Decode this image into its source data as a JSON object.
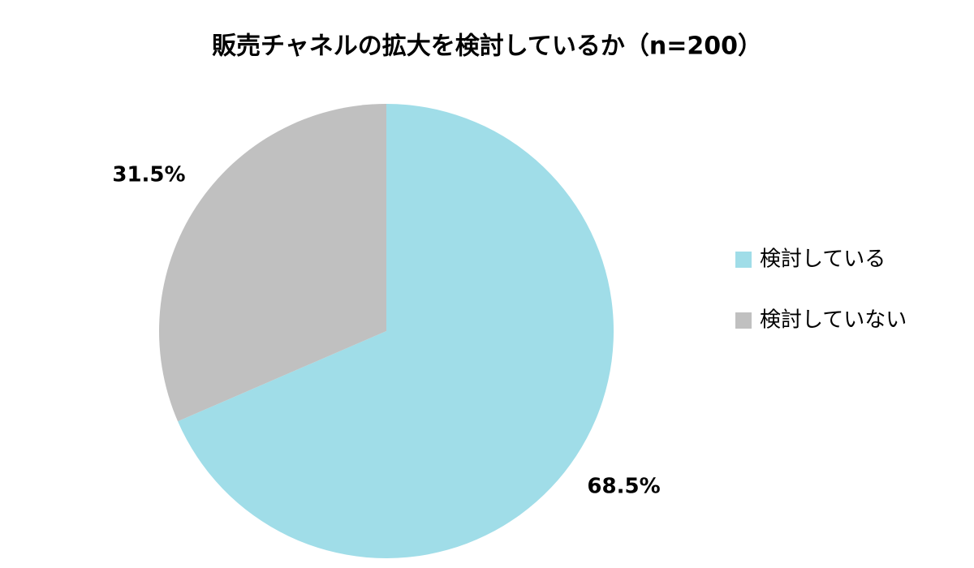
{
  "chart_data": {
    "type": "pie",
    "title": "販売チャネルの拡大を検討しているか（n=200）",
    "categories": [
      "検討している",
      "検討していない"
    ],
    "values": [
      68.5,
      31.5
    ],
    "value_labels": [
      "68.5%",
      "31.5%"
    ],
    "colors": [
      "#a0dde8",
      "#c0c0c0"
    ],
    "legend": "right"
  }
}
